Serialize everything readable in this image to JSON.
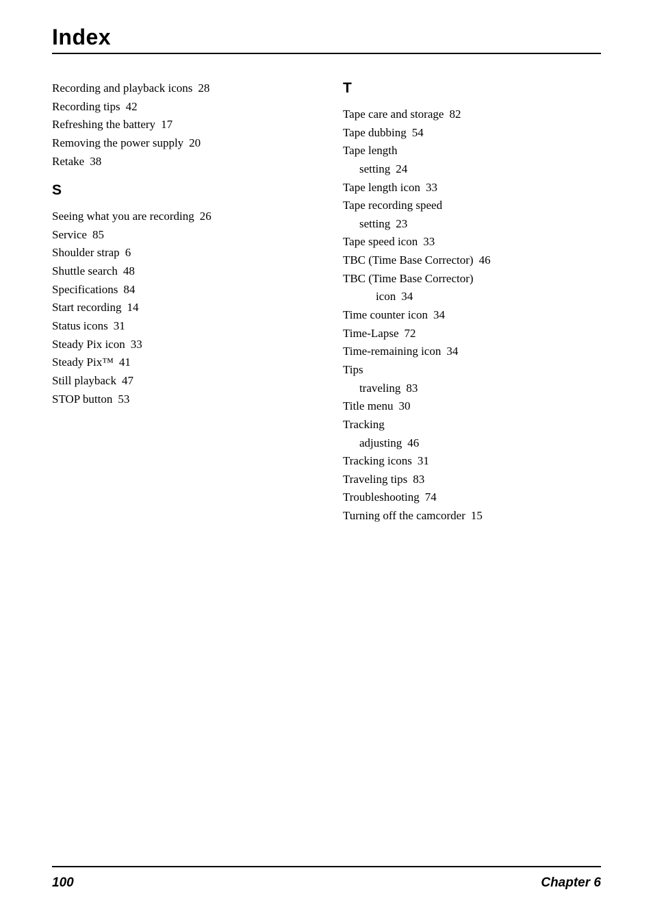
{
  "title": "Index",
  "left_col": {
    "pre_entries": [
      {
        "text": "Recording and playback icons",
        "page": "28"
      },
      {
        "text": "Recording tips",
        "page": "42"
      },
      {
        "text": "Refreshing the battery",
        "page": "17"
      },
      {
        "text": "Removing the power supply",
        "page": "20"
      },
      {
        "text": "Retake",
        "page": "38"
      }
    ],
    "section_s": {
      "letter": "S",
      "entries": [
        {
          "text": "Seeing what you are recording",
          "page": "26"
        },
        {
          "text": "Service",
          "page": "85"
        },
        {
          "text": "Shoulder strap",
          "page": "6"
        },
        {
          "text": "Shuttle search",
          "page": "48"
        },
        {
          "text": "Specifications",
          "page": "84"
        },
        {
          "text": "Start recording",
          "page": "14"
        },
        {
          "text": "Status icons",
          "page": "31"
        },
        {
          "text": "Steady Pix icon",
          "page": "33"
        },
        {
          "text": "Steady Pix™",
          "page": "41"
        },
        {
          "text": "Still playback",
          "page": "47"
        },
        {
          "text": "STOP button",
          "page": "53"
        }
      ]
    }
  },
  "right_col": {
    "section_t": {
      "letter": "T",
      "entries": [
        {
          "text": "Tape care and storage",
          "page": "82",
          "indent": 0
        },
        {
          "text": "Tape dubbing",
          "page": "54",
          "indent": 0
        },
        {
          "text": "Tape length",
          "page": "",
          "indent": 0
        },
        {
          "text": "setting",
          "page": "24",
          "indent": 1
        },
        {
          "text": "Tape length icon",
          "page": "33",
          "indent": 0
        },
        {
          "text": "Tape recording speed",
          "page": "",
          "indent": 0
        },
        {
          "text": "setting",
          "page": "23",
          "indent": 1
        },
        {
          "text": "Tape speed icon",
          "page": "33",
          "indent": 0
        },
        {
          "text": "TBC (Time Base Corrector)",
          "page": "46",
          "indent": 0
        },
        {
          "text": "TBC (Time Base Corrector)",
          "page": "",
          "indent": 0
        },
        {
          "text": "icon",
          "page": "34",
          "indent": 2
        },
        {
          "text": "Time counter icon",
          "page": "34",
          "indent": 0
        },
        {
          "text": "Time-Lapse",
          "page": "72",
          "indent": 0
        },
        {
          "text": "Time-remaining icon",
          "page": "34",
          "indent": 0
        },
        {
          "text": "Tips",
          "page": "",
          "indent": 0
        },
        {
          "text": "traveling",
          "page": "83",
          "indent": 1
        },
        {
          "text": "Title menu",
          "page": "30",
          "indent": 0
        },
        {
          "text": "Tracking",
          "page": "",
          "indent": 0
        },
        {
          "text": "adjusting",
          "page": "46",
          "indent": 1
        },
        {
          "text": "Tracking icons",
          "page": "31",
          "indent": 0
        },
        {
          "text": "Traveling tips",
          "page": "83",
          "indent": 0
        },
        {
          "text": "Troubleshooting",
          "page": "74",
          "indent": 0
        },
        {
          "text": "Turning off the camcorder",
          "page": "15",
          "indent": 0
        }
      ]
    }
  },
  "footer": {
    "page_number": "100",
    "chapter": "Chapter 6"
  }
}
